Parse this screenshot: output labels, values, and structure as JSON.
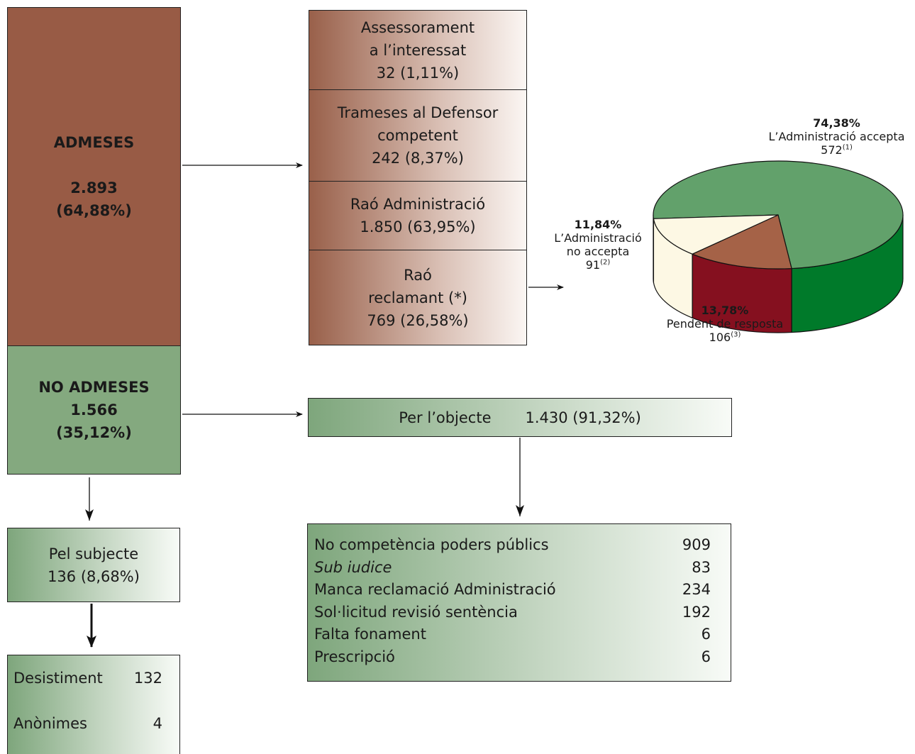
{
  "admeses": {
    "title": "ADMESES",
    "count": "2.893",
    "pct": "(64,88%)"
  },
  "no_admeses": {
    "title": "NO ADMESES",
    "count": "1.566",
    "pct": "(35,12%)"
  },
  "categories": [
    {
      "line1": "Assessorament",
      "line2": "a l’interessat",
      "value": "32 (1,11%)"
    },
    {
      "line1": "Trameses al Defensor",
      "line2": "competent",
      "value": "242 (8,37%)"
    },
    {
      "line1": "Raó Administració",
      "value": "1.850 (63,95%)"
    },
    {
      "line1": "Raó",
      "line2": "reclamant (*)",
      "value": "769 (26,58%)"
    }
  ],
  "per_objecte": {
    "label": "Per l’objecte",
    "value": "1.430 (91,32%)"
  },
  "objecte_reasons": [
    {
      "label": "No competència poders públics",
      "value": "909"
    },
    {
      "label": "Sub iudice",
      "value": "83",
      "italic": true
    },
    {
      "label": "Manca reclamació Administració",
      "value": "234"
    },
    {
      "label": "Sol·licitud revisió sentència",
      "value": "192"
    },
    {
      "label": "Falta fonament",
      "value": "6"
    },
    {
      "label": "Prescripció",
      "value": "6"
    }
  ],
  "pel_subjecte": {
    "line1": "Pel subjecte",
    "line2": "136 (8,68%)"
  },
  "subjecte_reasons": [
    {
      "label": "Desistiment",
      "value": "132"
    },
    {
      "label": "Anònimes",
      "value": "4"
    }
  ],
  "pie": {
    "slices": [
      {
        "pct": "74,38%",
        "label": "L’Administració accepta",
        "count": "572",
        "note": "(1)",
        "value": 572,
        "top_color": "#62a16b",
        "side_color": "#007a2a"
      },
      {
        "pct": "13,78%",
        "label": "Pendent de resposta",
        "count": "106",
        "note": "(3)",
        "value": 106,
        "top_color": "#a56247",
        "side_color": "#85101f"
      },
      {
        "pct": "11,84%",
        "label_line1": "L’Administració",
        "label_line2": "no accepta",
        "count": "91",
        "note": "(2)",
        "value": 91,
        "top_color": "#fdf8e4",
        "side_color": "#fdf8e4"
      }
    ]
  }
}
